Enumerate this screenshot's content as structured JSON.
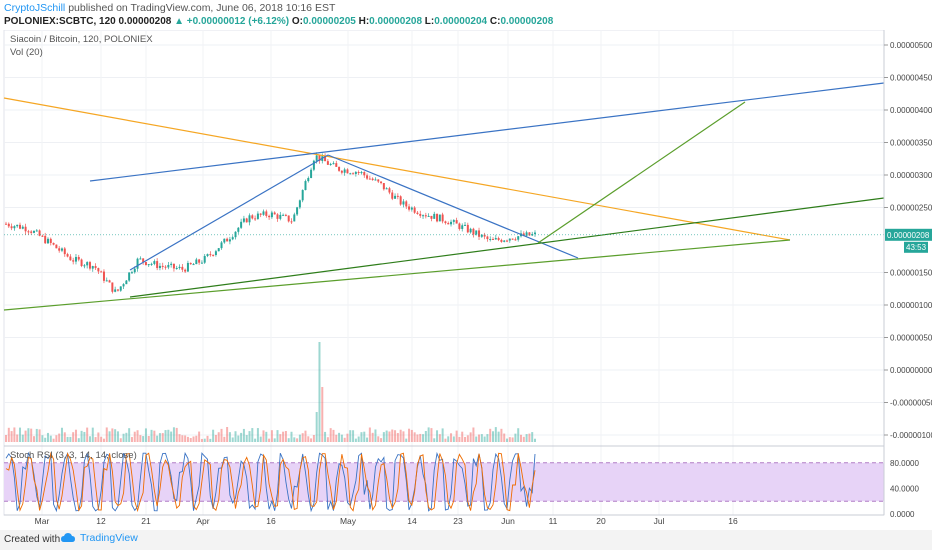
{
  "header": {
    "author": "CryptoJSchill",
    "published": "published on TradingView.com, June 06, 2018 10:16 EST",
    "symbol": "POLONIEX:SCBTC, 120",
    "price": "0.00000208",
    "change": "▲ +0.00000012 (+6.12%)",
    "o_label": "O:",
    "o_value": "0.00000205",
    "h_label": "H:",
    "h_value": "0.00000208",
    "l_label": "L:",
    "l_value": "0.00000204",
    "c_label": "C:",
    "c_value": "0.00000208"
  },
  "footer": {
    "created_with": "Created with",
    "brand": "TradingView"
  },
  "chart_data": {
    "type": "candlestick",
    "title": "Siacoin / Bitcoin, 120, POLONIEX",
    "indicator_labels": [
      "Vol (20)",
      "Stoch RSI (3, 3, 14, 14, close)"
    ],
    "x_axis_labels": [
      "Mar",
      "12",
      "21",
      "Apr",
      "16",
      "May",
      "14",
      "23",
      "Jun",
      "11",
      "20",
      "Jul",
      "16"
    ],
    "y_axis_labels": [
      "0.00000500",
      "0.00000450",
      "0.00000400",
      "0.00000350",
      "0.00000300",
      "0.00000250",
      "0.00000150",
      "0.00000100",
      "0.00000050",
      "0.00000000",
      "-0.00000050",
      "-0.00000100"
    ],
    "ylim": [
      -1e-06,
      5e-06
    ],
    "price_series": [
      {
        "date": "Feb 26",
        "price": 2.25e-06
      },
      {
        "date": "Mar 1",
        "price": 2.18e-06
      },
      {
        "date": "Mar 5",
        "price": 1.95e-06
      },
      {
        "date": "Mar 10",
        "price": 1.7e-06
      },
      {
        "date": "Mar 14",
        "price": 1.6e-06
      },
      {
        "date": "Mar 18",
        "price": 1.18e-06
      },
      {
        "date": "Mar 22",
        "price": 1.7e-06
      },
      {
        "date": "Mar 26",
        "price": 1.6e-06
      },
      {
        "date": "Mar 30",
        "price": 1.55e-06
      },
      {
        "date": "Apr 5",
        "price": 1.7e-06
      },
      {
        "date": "Apr 10",
        "price": 2e-06
      },
      {
        "date": "Apr 14",
        "price": 2.35e-06
      },
      {
        "date": "Apr 20",
        "price": 2.4e-06
      },
      {
        "date": "Apr 24",
        "price": 2.3e-06
      },
      {
        "date": "Apr 26",
        "price": 3.3e-06
      },
      {
        "date": "Apr 29",
        "price": 3.1e-06
      },
      {
        "date": "May 3",
        "price": 3.05e-06
      },
      {
        "date": "May 7",
        "price": 2.85e-06
      },
      {
        "date": "May 11",
        "price": 2.55e-06
      },
      {
        "date": "May 15",
        "price": 2.4e-06
      },
      {
        "date": "May 19",
        "price": 2.3e-06
      },
      {
        "date": "May 23",
        "price": 2.15e-06
      },
      {
        "date": "May 28",
        "price": 1.98e-06
      },
      {
        "date": "Jun 2",
        "price": 2.05e-06
      },
      {
        "date": "Jun 6",
        "price": 2.08e-06
      }
    ],
    "current_price_label": "0.00000208",
    "countdown_label": "43:53",
    "stoch_rsi_axis_labels": [
      "80.0000",
      "40.0000",
      "0.0000"
    ],
    "colors": {
      "up": "#26a69a",
      "down": "#ef5350",
      "blue_line": "#3a73c4",
      "orange_line": "#f5a623",
      "green_line": "#5b9e2c",
      "dark_green_line": "#2e7d1a",
      "stoch_band": "#e7d3f7",
      "stoch_k": "#3a73c4",
      "stoch_d": "#ef6c00"
    }
  }
}
